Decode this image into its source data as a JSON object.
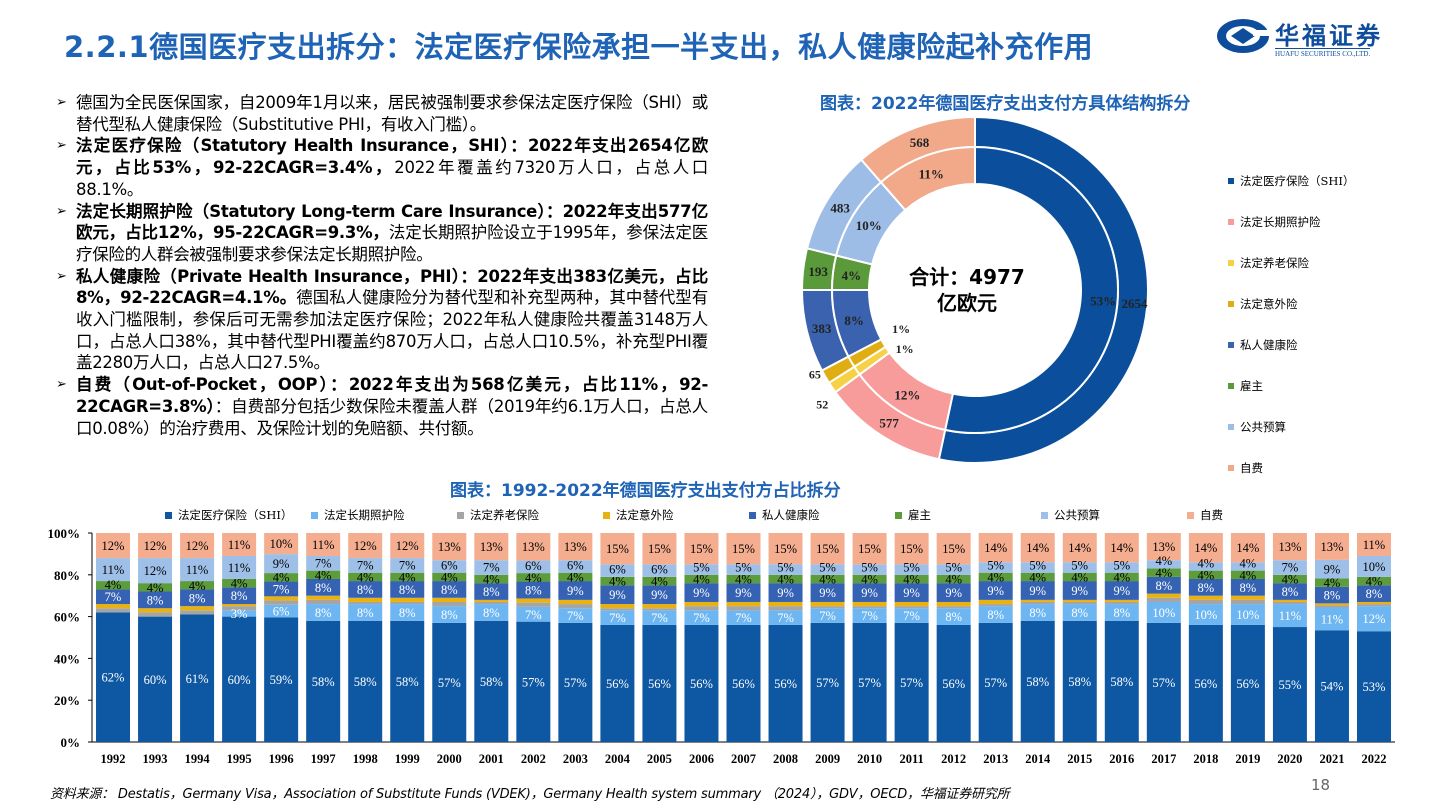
{
  "header": {
    "title": "2.2.1德国医疗支出拆分：法定医疗保险承担一半支出，私人健康险起补充作用",
    "logo_cn": "华福证券",
    "logo_en": "HUAFU SECURITIES CO.,LTD."
  },
  "bullets": [
    {
      "segments": [
        {
          "text": "德国为全民医保国家，自2009年1月以来，居民被强制要求参保法定医疗保险（SHI）或替代型私人健康保险（Substitutive PHI，有收入门槛）。",
          "bold": false
        }
      ]
    },
    {
      "segments": [
        {
          "text": "法定医疗保险（Statutory Health Insurance，SHI）：2022年支出2654亿欧元，占比53%，92-22CAGR=3.4%，",
          "bold": true
        },
        {
          "text": "2022年覆盖约7320万人口，占总人口88.1%。",
          "bold": false
        }
      ]
    },
    {
      "segments": [
        {
          "text": "法定长期照护险（Statutory Long-term Care Insurance）：2022年支出577亿欧元，占比12%，95-22CAGR=9.3%，",
          "bold": true
        },
        {
          "text": "法定长期照护险设立于1995年，参保法定医疗保险的人群会被强制要求参保法定长期照护险。",
          "bold": false
        }
      ]
    },
    {
      "segments": [
        {
          "text": "私人健康险（Private Health Insurance，PHI）：2022年支出383亿美元，占比8%，92-22CAGR=4.1%。",
          "bold": true
        },
        {
          "text": "德国私人健康险分为替代型和补充型两种，其中替代型有收入门槛限制，参保后可无需参加法定医疗保险；2022年私人健康险共覆盖3148万人口，占总人口38%，其中替代型PHI覆盖约870万人口，占总人口10.5%，补充型PHI覆盖2280万人口，占总人口27.5%。",
          "bold": false
        }
      ]
    },
    {
      "segments": [
        {
          "text": "自费（Out-of-Pocket，OOP）：2022年支出为568亿美元，占比11%，92-22CAGR=3.8%）",
          "bold": true
        },
        {
          "text": "：自费部分包括少数保险未覆盖人群（2019年约6.1万人口，占总人口0.08%）的治疗费用、及保险计划的免赔额、共付额。",
          "bold": false
        }
      ]
    }
  ],
  "bullet_icon": "arrow-right-icon",
  "chart_data": [
    {
      "type": "pie",
      "title": "图表：2022年德国医疗支出支付方具体结构拆分",
      "center_label": [
        "合计：4977",
        "亿欧元"
      ],
      "unit": "亿欧元",
      "categories": [
        "法定医疗保险（SHI）",
        "法定长期照护险",
        "法定养老保险",
        "法定意外险",
        "私人健康险",
        "雇主",
        "公共预算",
        "自费"
      ],
      "values": [
        2654,
        577,
        52,
        65,
        383,
        193,
        483,
        568
      ],
      "percent_labels": [
        "53%",
        "12%",
        "1%",
        "1%",
        "8%",
        "4%",
        "10%",
        "11%"
      ],
      "colors": [
        "#0B4F9C",
        "#F79B9B",
        "#F7D145",
        "#E0AD12",
        "#3B62AE",
        "#5A9A3A",
        "#9DBDE6",
        "#F1A98A"
      ],
      "legend": "right"
    },
    {
      "type": "bar",
      "stacked": true,
      "title": "图表：1992-2022年德国医疗支出支付方占比拆分",
      "categories": [
        "1992",
        "1993",
        "1994",
        "1995",
        "1996",
        "1997",
        "1998",
        "1999",
        "2000",
        "2001",
        "2002",
        "2003",
        "2004",
        "2005",
        "2006",
        "2007",
        "2008",
        "2009",
        "2010",
        "2011",
        "2012",
        "2013",
        "2014",
        "2015",
        "2016",
        "2017",
        "2018",
        "2019",
        "2020",
        "2021",
        "2022"
      ],
      "yticks": [
        "0%",
        "20%",
        "40%",
        "60%",
        "80%",
        "100%"
      ],
      "ylim": [
        0,
        100
      ],
      "legend": "top",
      "series": [
        {
          "name": "法定医疗保险（SHI）",
          "color": "#0D57A3",
          "label_color": "#fff",
          "labeled": true,
          "values": [
            62,
            60,
            61,
            60,
            59,
            58,
            58,
            58,
            57,
            58,
            57,
            57,
            56,
            56,
            56,
            56,
            56,
            57,
            57,
            57,
            56,
            57,
            58,
            58,
            58,
            57,
            56,
            56,
            55,
            54,
            53
          ]
        },
        {
          "name": "法定长期照护险",
          "color": "#6DB6F2",
          "label_color": "#fff",
          "labeled": true,
          "values": [
            0,
            0,
            0,
            3,
            6,
            8,
            8,
            8,
            8,
            8,
            7,
            7,
            7,
            7,
            7,
            7,
            7,
            7,
            7,
            7,
            8,
            8,
            8,
            8,
            8,
            10,
            10,
            10,
            11,
            11,
            12
          ]
        },
        {
          "name": "法定养老保险",
          "color": "#A5A5A5",
          "label_color": "#000",
          "labeled": false,
          "values": [
            2,
            2,
            2,
            2,
            2,
            2,
            1,
            1,
            2,
            1,
            2,
            2,
            1,
            1,
            2,
            2,
            2,
            1,
            1,
            1,
            1,
            1,
            1,
            1,
            1,
            2,
            2,
            2,
            1,
            1,
            1
          ]
        },
        {
          "name": "法定意外险",
          "color": "#E9B213",
          "label_color": "#000",
          "labeled": false,
          "values": [
            2,
            2,
            2,
            1,
            2,
            2,
            2,
            2,
            2,
            1,
            2,
            2,
            2,
            2,
            2,
            2,
            2,
            2,
            2,
            2,
            2,
            2,
            1,
            1,
            1,
            2,
            2,
            2,
            1,
            1,
            1
          ]
        },
        {
          "name": "私人健康险",
          "color": "#3562B3",
          "label_color": "#fff",
          "labeled": true,
          "values": [
            7,
            8,
            8,
            8,
            7,
            8,
            8,
            8,
            8,
            8,
            8,
            9,
            9,
            9,
            9,
            9,
            9,
            9,
            9,
            9,
            9,
            9,
            9,
            9,
            9,
            8,
            8,
            8,
            8,
            8,
            8
          ]
        },
        {
          "name": "雇主",
          "color": "#5C9C3B",
          "label_color": "#000",
          "labeled": true,
          "values": [
            4,
            4,
            4,
            4,
            4,
            4,
            4,
            4,
            4,
            4,
            4,
            4,
            4,
            4,
            4,
            4,
            4,
            4,
            4,
            4,
            4,
            4,
            4,
            4,
            4,
            4,
            4,
            4,
            4,
            4,
            4
          ]
        },
        {
          "name": "公共预算",
          "color": "#9EC0E8",
          "label_color": "#000",
          "labeled": true,
          "values": [
            11,
            12,
            11,
            11,
            9,
            7,
            7,
            7,
            6,
            7,
            6,
            6,
            6,
            6,
            5,
            5,
            5,
            5,
            5,
            5,
            5,
            5,
            5,
            5,
            5,
            4,
            4,
            4,
            7,
            9,
            10
          ]
        },
        {
          "name": "自费",
          "color": "#F5AD8F",
          "label_color": "#000",
          "labeled": true,
          "values": [
            12,
            12,
            12,
            11,
            10,
            11,
            12,
            12,
            13,
            13,
            13,
            13,
            15,
            15,
            15,
            15,
            15,
            15,
            15,
            15,
            15,
            14,
            14,
            14,
            14,
            13,
            14,
            14,
            13,
            13,
            11
          ]
        }
      ]
    }
  ],
  "footer": {
    "source": "资料来源： Destatis，Germany Visa，Association of Substitute Funds (VDEK)，Germany Health system summary （2024），GDV，OECD，华福证券研究所",
    "page": "18"
  }
}
